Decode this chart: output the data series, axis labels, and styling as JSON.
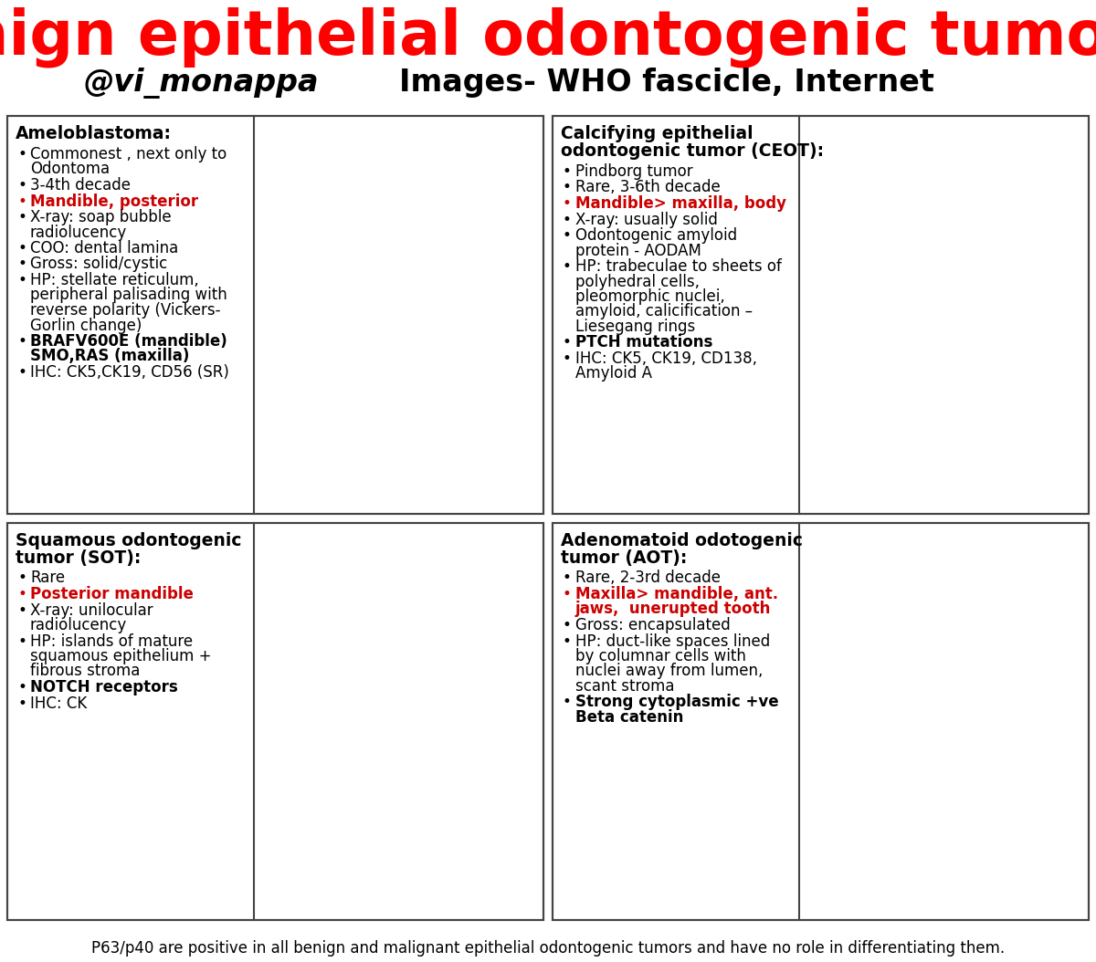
{
  "title": "Benign epithelial odontogenic tumours",
  "subtitle_left": "@vi_monappa",
  "subtitle_right": "Images- WHO fascicle, Internet",
  "footer": "P63/p40 are positive in all benign and malignant epithelial odontogenic tumors and have no role in differentiating them.",
  "bg_color": "#ffffff",
  "title_color": "#ff0000",
  "title_fontsize": 48,
  "subtitle_fontsize": 24,
  "footer_fontsize": 12,
  "panels": [
    {
      "title": "Ameloblastoma:",
      "bullets": [
        {
          "text": "Commonest , next only to\nOdontoma",
          "bold": false,
          "color": "#000000"
        },
        {
          "text": "3-4th decade",
          "bold": false,
          "color": "#000000"
        },
        {
          "text": "Mandible, posterior",
          "bold": true,
          "color": "#cc0000"
        },
        {
          "text": "X-ray: soap bubble\nradiolucency",
          "bold": false,
          "color": "#000000"
        },
        {
          "text": "COO: dental lamina",
          "bold": false,
          "color": "#000000"
        },
        {
          "text": "Gross: solid/cystic",
          "bold": false,
          "color": "#000000"
        },
        {
          "text": "HP: stellate reticulum,\nperipheral palisading with\nreverse polarity (Vickers-\nGorlin change)",
          "bold": false,
          "color": "#000000"
        },
        {
          "text": "BRAFV600E (mandible)\nSMO,RAS (maxilla)",
          "bold": true,
          "color": "#000000"
        },
        {
          "text": "IHC: CK5,CK19, CD56 (SR)",
          "bold": false,
          "color": "#000000"
        }
      ],
      "img_base": "#b090b8",
      "img_accent": "#7850a0",
      "img_light": "#e0d0e8",
      "row": 0,
      "col": 0
    },
    {
      "title": "Calcifying epithelial\nodontogenic tumor (CEOT):",
      "bullets": [
        {
          "text": "Pindborg tumor",
          "bold": false,
          "color": "#000000"
        },
        {
          "text": "Rare, 3-6th decade",
          "bold": false,
          "color": "#000000"
        },
        {
          "text": "Mandible> maxilla, body",
          "bold": true,
          "color": "#cc0000"
        },
        {
          "text": "X-ray: usually solid",
          "bold": false,
          "color": "#000000"
        },
        {
          "text": "Odontogenic amyloid\nprotein - AODAM",
          "bold": false,
          "color": "#000000"
        },
        {
          "text": "HP: trabeculae to sheets of\npolyhedral cells,\npleomorphic nuclei,\namyloid, calicification –\nLiesegang rings",
          "bold": false,
          "color": "#000000"
        },
        {
          "text": "PTCH mutations",
          "bold": true,
          "color": "#000000"
        },
        {
          "text": "IHC: CK5, CK19, CD138,\nAmyloid A",
          "bold": false,
          "color": "#000000"
        }
      ],
      "img_base": "#d8b0bc",
      "img_accent": "#9870a0",
      "img_light": "#f0e0e8",
      "row": 0,
      "col": 1
    },
    {
      "title": "Squamous odontogenic\ntumor (SOT):",
      "bullets": [
        {
          "text": "Rare",
          "bold": false,
          "color": "#000000"
        },
        {
          "text": "Posterior mandible",
          "bold": true,
          "color": "#cc0000"
        },
        {
          "text": "X-ray: unilocular\nradiolucency",
          "bold": false,
          "color": "#000000"
        },
        {
          "text": "HP: islands of mature\nsquamous epithelium +\nfibrous stroma",
          "bold": false,
          "color": "#000000"
        },
        {
          "text": "NOTCH receptors",
          "bold": true,
          "color": "#000000"
        },
        {
          "text": "IHC: CK",
          "bold": false,
          "color": "#000000"
        }
      ],
      "img_base": "#e890b0",
      "img_accent": "#c04080",
      "img_light": "#f8d0e0",
      "row": 1,
      "col": 0
    },
    {
      "title": "Adenomatoid odotogenic\ntumor (AOT):",
      "bullets": [
        {
          "text": "Rare, 2-3rd decade",
          "bold": false,
          "color": "#000000"
        },
        {
          "text": "Maxilla> mandible, ant.\njaws,  unerupted tooth",
          "bold": true,
          "color": "#cc0000"
        },
        {
          "text": "Gross: encapsulated",
          "bold": false,
          "color": "#000000"
        },
        {
          "text": "HP: duct-like spaces lined\nby columnar cells with\nnuclei away from lumen,\nscant stroma",
          "bold": false,
          "color": "#000000"
        },
        {
          "text": "Strong cytoplasmic +ve\nBeta catenin",
          "bold": true,
          "color": "#000000"
        }
      ],
      "img_base": "#c8a0c0",
      "img_accent": "#806090",
      "img_light": "#f0e0f0",
      "row": 1,
      "col": 1
    }
  ]
}
